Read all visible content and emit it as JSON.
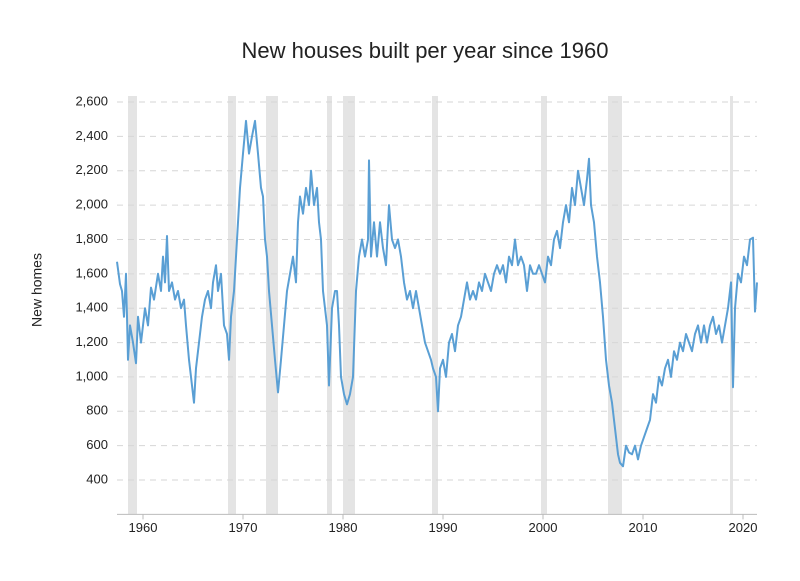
{
  "chart_data": {
    "type": "line",
    "title": "New houses built per year since 1960",
    "y_label": "New homes",
    "x": [
      1957.4,
      1957.7,
      1957.9,
      1958.1,
      1958.3,
      1958.5,
      1958.7,
      1959.0,
      1959.3,
      1959.5,
      1959.8,
      1960.2,
      1960.5,
      1960.8,
      1961.1,
      1961.5,
      1961.8,
      1962.0,
      1962.2,
      1962.4,
      1962.6,
      1962.9,
      1963.2,
      1963.5,
      1963.8,
      1964.1,
      1964.3,
      1964.6,
      1964.8,
      1965.1,
      1965.3,
      1965.6,
      1965.9,
      1966.2,
      1966.5,
      1966.8,
      1967.0,
      1967.3,
      1967.5,
      1967.8,
      1968.1,
      1968.4,
      1968.6,
      1968.8,
      1969.1,
      1969.4,
      1969.7,
      1970.0,
      1970.3,
      1970.6,
      1970.9,
      1971.2,
      1971.5,
      1971.8,
      1972.0,
      1972.2,
      1972.4,
      1972.6,
      1972.9,
      1973.2,
      1973.5,
      1973.8,
      1974.1,
      1974.4,
      1974.7,
      1975.0,
      1975.3,
      1975.5,
      1975.7,
      1976.0,
      1976.3,
      1976.6,
      1976.8,
      1977.1,
      1977.4,
      1977.6,
      1977.8,
      1978.0,
      1978.2,
      1978.4,
      1978.6,
      1978.9,
      1979.2,
      1979.4,
      1979.6,
      1979.8,
      1980.1,
      1980.4,
      1980.7,
      1981.0,
      1981.3,
      1981.6,
      1981.9,
      1982.2,
      1982.5,
      1982.6,
      1982.8,
      1983.1,
      1983.4,
      1983.7,
      1984.0,
      1984.3,
      1984.6,
      1984.9,
      1985.2,
      1985.5,
      1985.8,
      1986.1,
      1986.4,
      1986.7,
      1987.0,
      1987.3,
      1987.6,
      1987.9,
      1988.2,
      1988.5,
      1988.8,
      1989.0,
      1989.3,
      1989.5,
      1989.7,
      1990.0,
      1990.3,
      1990.6,
      1990.9,
      1991.2,
      1991.5,
      1991.8,
      1992.1,
      1992.4,
      1992.7,
      1993.0,
      1993.3,
      1993.6,
      1993.9,
      1994.2,
      1994.5,
      1994.8,
      1995.1,
      1995.4,
      1995.7,
      1996.0,
      1996.3,
      1996.6,
      1996.9,
      1997.2,
      1997.5,
      1997.8,
      1998.1,
      1998.4,
      1998.7,
      1999.0,
      1999.3,
      1999.6,
      1999.9,
      2000.2,
      2000.5,
      2000.8,
      2001.1,
      2001.4,
      2001.7,
      2002.0,
      2002.3,
      2002.6,
      2002.9,
      2003.2,
      2003.5,
      2003.8,
      2004.1,
      2004.4,
      2004.6,
      2004.8,
      2005.1,
      2005.4,
      2005.7,
      2006.0,
      2006.3,
      2006.6,
      2006.9,
      2007.2,
      2007.5,
      2007.7,
      2008.0,
      2008.3,
      2008.6,
      2008.9,
      2009.2,
      2009.5,
      2009.8,
      2010.1,
      2010.4,
      2010.7,
      2011.0,
      2011.3,
      2011.6,
      2011.9,
      2012.2,
      2012.5,
      2012.8,
      2013.1,
      2013.4,
      2013.7,
      2014.0,
      2014.3,
      2014.6,
      2014.9,
      2015.2,
      2015.5,
      2015.8,
      2016.1,
      2016.4,
      2016.7,
      2017.0,
      2017.3,
      2017.6,
      2017.9,
      2018.2,
      2018.5,
      2018.8,
      2019.0,
      2019.2,
      2019.5,
      2019.8,
      2020.1,
      2020.4,
      2020.7,
      2021.0,
      2021.2,
      2021.4
    ],
    "series": [
      {
        "name": "New homes",
        "color": "#5a9fd4",
        "values": [
          1670,
          1540,
          1500,
          1350,
          1600,
          1100,
          1300,
          1200,
          1080,
          1350,
          1200,
          1400,
          1300,
          1520,
          1450,
          1600,
          1500,
          1700,
          1550,
          1820,
          1500,
          1550,
          1450,
          1500,
          1400,
          1450,
          1300,
          1100,
          1000,
          850,
          1050,
          1200,
          1350,
          1450,
          1500,
          1400,
          1550,
          1650,
          1500,
          1600,
          1300,
          1250,
          1100,
          1350,
          1500,
          1800,
          2100,
          2300,
          2490,
          2300,
          2400,
          2490,
          2300,
          2100,
          2050,
          1800,
          1700,
          1500,
          1300,
          1100,
          910,
          1100,
          1300,
          1500,
          1600,
          1700,
          1550,
          1900,
          2050,
          1950,
          2100,
          2000,
          2200,
          2000,
          2100,
          1900,
          1800,
          1500,
          1400,
          1300,
          950,
          1400,
          1500,
          1500,
          1300,
          1000,
          900,
          840,
          900,
          1000,
          1500,
          1700,
          1800,
          1700,
          1800,
          2260,
          1700,
          1900,
          1700,
          1900,
          1750,
          1650,
          2000,
          1800,
          1750,
          1800,
          1700,
          1550,
          1450,
          1500,
          1400,
          1500,
          1400,
          1300,
          1200,
          1150,
          1100,
          1050,
          1000,
          800,
          1050,
          1100,
          1000,
          1200,
          1250,
          1150,
          1300,
          1350,
          1450,
          1550,
          1450,
          1500,
          1450,
          1550,
          1500,
          1600,
          1550,
          1500,
          1600,
          1650,
          1600,
          1650,
          1550,
          1700,
          1650,
          1800,
          1650,
          1700,
          1650,
          1500,
          1650,
          1600,
          1600,
          1650,
          1600,
          1550,
          1700,
          1650,
          1800,
          1850,
          1750,
          1900,
          2000,
          1900,
          2100,
          2000,
          2200,
          2100,
          2000,
          2150,
          2270,
          2000,
          1900,
          1700,
          1550,
          1350,
          1100,
          950,
          850,
          700,
          550,
          500,
          480,
          600,
          560,
          550,
          600,
          520,
          600,
          650,
          700,
          750,
          900,
          850,
          1000,
          950,
          1050,
          1100,
          1000,
          1150,
          1100,
          1200,
          1150,
          1250,
          1200,
          1150,
          1250,
          1300,
          1200,
          1300,
          1200,
          1300,
          1350,
          1250,
          1300,
          1200,
          1300,
          1400,
          1550,
          940,
          1400,
          1600,
          1550,
          1700,
          1650,
          1800,
          1810,
          1380,
          1550
        ]
      }
    ],
    "recessions": [
      [
        1958.5,
        1959.4
      ],
      [
        1968.5,
        1969.3
      ],
      [
        1972.3,
        1973.5
      ],
      [
        1978.4,
        1978.9
      ],
      [
        1980.0,
        1981.2
      ],
      [
        1988.9,
        1989.5
      ],
      [
        1999.8,
        2000.4
      ],
      [
        2006.5,
        2007.9
      ],
      [
        2018.7,
        2019.0
      ]
    ],
    "recession_color": "#e4e4e4",
    "xlim": [
      1957.4,
      2021.4
    ],
    "xticks": [
      1960,
      1970,
      1980,
      1990,
      2000,
      2010,
      2020
    ],
    "ylim": [
      200,
      2600
    ],
    "yticks": [
      {
        "value": 400,
        "label": "400"
      },
      {
        "value": 600,
        "label": "600"
      },
      {
        "value": 800,
        "label": "800"
      },
      {
        "value": 1000,
        "label": "1,000"
      },
      {
        "value": 1200,
        "label": "1,200"
      },
      {
        "value": 1400,
        "label": "1,400"
      },
      {
        "value": 1600,
        "label": "1,600"
      },
      {
        "value": 1800,
        "label": "1,800"
      },
      {
        "value": 2000,
        "label": "2,000"
      },
      {
        "value": 2200,
        "label": "2,200"
      },
      {
        "value": 2400,
        "label": "2,400"
      },
      {
        "value": 2600,
        "label": "2,600"
      }
    ],
    "grid": true
  }
}
